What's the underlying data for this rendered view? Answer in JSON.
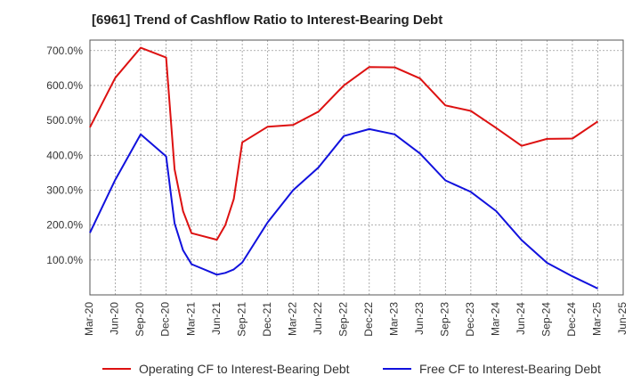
{
  "chart_data": {
    "type": "line",
    "title": "[6961]  Trend of Cashflow Ratio to Interest-Bearing Debt",
    "xlabel": "",
    "ylabel": "",
    "x_tick_labels": [
      "Mar-20",
      "Jun-20",
      "Sep-20",
      "Dec-20",
      "Mar-21",
      "Jun-21",
      "Sep-21",
      "Dec-21",
      "Mar-22",
      "Jun-22",
      "Sep-22",
      "Dec-22",
      "Mar-23",
      "Jun-23",
      "Sep-23",
      "Dec-23",
      "Mar-24",
      "Jun-24",
      "Sep-24",
      "Dec-24",
      "Mar-25",
      "Jun-25"
    ],
    "y_tick_labels": [
      "100.0%",
      "200.0%",
      "300.0%",
      "400.0%",
      "500.0%",
      "600.0%",
      "700.0%"
    ],
    "y_ticks": [
      100,
      200,
      300,
      400,
      500,
      600,
      700
    ],
    "ylim": [
      0,
      730
    ],
    "grid": true,
    "legend_position": "bottom",
    "series": [
      {
        "name": "Operating CF to Interest-Bearing Debt",
        "color": "#dd1111",
        "points": [
          [
            "Mar-20",
            480
          ],
          [
            "Jun-20",
            622
          ],
          [
            "Sep-20",
            708
          ],
          [
            "Dec-20",
            680
          ],
          [
            "Jan-21",
            360
          ],
          [
            "Feb-21",
            240
          ],
          [
            "Mar-21",
            177
          ],
          [
            "Jun-21",
            158
          ],
          [
            "Jul-21",
            200
          ],
          [
            "Aug-21",
            275
          ],
          [
            "Sep-21",
            437
          ],
          [
            "Dec-21",
            482
          ],
          [
            "Mar-22",
            487
          ],
          [
            "Jun-22",
            525
          ],
          [
            "Sep-22",
            600
          ],
          [
            "Dec-22",
            653
          ],
          [
            "Mar-23",
            652
          ],
          [
            "Jun-23",
            620
          ],
          [
            "Sep-23",
            543
          ],
          [
            "Dec-23",
            527
          ],
          [
            "Mar-24",
            478
          ],
          [
            "Jun-24",
            427
          ],
          [
            "Sep-24",
            447
          ],
          [
            "Dec-24",
            448
          ],
          [
            "Mar-25",
            497
          ]
        ]
      },
      {
        "name": "Free CF to Interest-Bearing Debt",
        "color": "#1111dd",
        "points": [
          [
            "Mar-20",
            178
          ],
          [
            "Jun-20",
            330
          ],
          [
            "Sep-20",
            460
          ],
          [
            "Dec-20",
            397
          ],
          [
            "Jan-21",
            205
          ],
          [
            "Feb-21",
            128
          ],
          [
            "Mar-21",
            88
          ],
          [
            "Jun-21",
            58
          ],
          [
            "Jul-21",
            63
          ],
          [
            "Aug-21",
            73
          ],
          [
            "Sep-21",
            93
          ],
          [
            "Dec-21",
            208
          ],
          [
            "Mar-22",
            300
          ],
          [
            "Jun-22",
            365
          ],
          [
            "Sep-22",
            455
          ],
          [
            "Dec-22",
            475
          ],
          [
            "Mar-23",
            460
          ],
          [
            "Jun-23",
            405
          ],
          [
            "Sep-23",
            328
          ],
          [
            "Dec-23",
            295
          ],
          [
            "Mar-24",
            240
          ],
          [
            "Jun-24",
            157
          ],
          [
            "Sep-24",
            92
          ],
          [
            "Dec-24",
            53
          ],
          [
            "Mar-25",
            18
          ]
        ]
      }
    ]
  }
}
